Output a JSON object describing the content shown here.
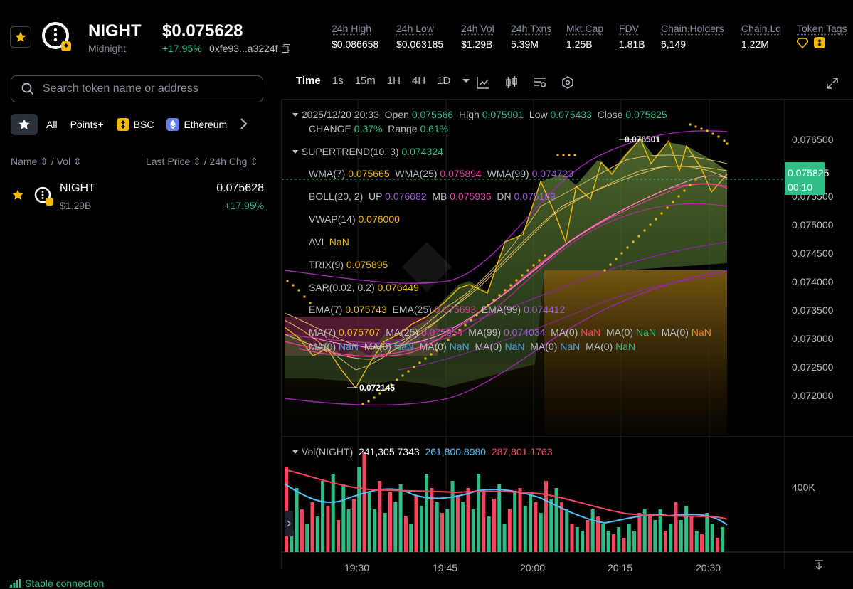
{
  "header": {
    "name": "NIGHT",
    "subtitle": "Midnight",
    "price": "$0.075628",
    "change": "+17.95%",
    "address": "0xfe93...a3224f",
    "stats": [
      {
        "label": "24h High",
        "value": "$0.086658"
      },
      {
        "label": "24h Low",
        "value": "$0.063185"
      },
      {
        "label": "24h Vol",
        "value": "$1.29B"
      },
      {
        "label": "24h Txns",
        "value": "5.39M"
      },
      {
        "label": "Mkt Cap",
        "value": "1.25B"
      },
      {
        "label": "FDV",
        "value": "1.81B"
      },
      {
        "label": "Chain.Holders",
        "value": "6,149"
      },
      {
        "label": "Chain.Lq",
        "value": "1.22M"
      },
      {
        "label": "Token Tags",
        "value": ""
      }
    ]
  },
  "search": {
    "placeholder": "Search token name or address"
  },
  "filters": [
    "All",
    "Points+",
    "BSC",
    "Ethereum"
  ],
  "list": {
    "col_left": "Name ⇕ / Vol ⇕",
    "col_right": "Last Price ⇕ / 24h Chg ⇕",
    "rows": [
      {
        "name": "NIGHT",
        "vol": "$1.29B",
        "price": "0.075628",
        "change": "+17.95%"
      }
    ]
  },
  "toolbar": {
    "intervals": [
      "Time",
      "1s",
      "15m",
      "1H",
      "4H",
      "1D"
    ]
  },
  "legend": {
    "date": "2025/12/20 20:33",
    "open_l": "Open",
    "open": "0.075566",
    "high_l": "High",
    "high": "0.075901",
    "low_l": "Low",
    "low": "0.075433",
    "close_l": "Close",
    "close": "0.075825",
    "change_l": "CHANGE",
    "change": "0.37%",
    "range_l": "Range",
    "range": "0.61%",
    "supertrend_l": "SUPERTREND(10, 3)",
    "supertrend": "0.074324",
    "wma7_l": "WMA(7)",
    "wma7": "0.075665",
    "wma25_l": "WMA(25)",
    "wma25": "0.075894",
    "wma99_l": "WMA(99)",
    "wma99": "0.074723",
    "boll_l": "BOLL(20, 2)",
    "up_l": "UP",
    "up": "0.076682",
    "mb_l": "MB",
    "mb": "0.075936",
    "dn_l": "DN",
    "dn": "0.075189",
    "vwap_l": "VWAP(14)",
    "vwap": "0.076000",
    "avl_l": "AVL",
    "avl": "NaN",
    "trix_l": "TRIX(9)",
    "trix": "0.075895",
    "sar_l": "SAR(0.02, 0.2)",
    "sar": "0.076449",
    "ema7_l": "EMA(7)",
    "ema7": "0.075743",
    "ema25_l": "EMA(25)",
    "ema25": "0.075693",
    "ema99_l": "EMA(99)",
    "ema99": "0.074412",
    "ma7_l": "MA(7)",
    "ma7": "0.075707",
    "ma25_l": "MA(25)",
    "ma25": "0.075854",
    "ma99_l": "MA(99)",
    "ma99": "0.074034",
    "ma0_l": "MA(0)",
    "nan": "NaN"
  },
  "price_axis": [
    "0.076500",
    "0.075500",
    "0.075000",
    "0.074500",
    "0.074000",
    "0.073500",
    "0.073000",
    "0.072500",
    "0.072000"
  ],
  "current_price": {
    "value": "0.075825",
    "countdown": "00:10"
  },
  "markers": {
    "high": "0.076501",
    "low": "0.072145"
  },
  "volume": {
    "label": "Vol(NIGHT)",
    "v1": "241,305.7343",
    "v2": "261,800.8980",
    "v3": "287,801.1763",
    "axis": "400K"
  },
  "time_axis": [
    "19:30",
    "19:45",
    "20:00",
    "20:15",
    "20:30"
  ],
  "status": "Stable connection",
  "colors": {
    "up": "#2ebd85",
    "down": "#f6465d",
    "accent": "#f0b90b"
  }
}
